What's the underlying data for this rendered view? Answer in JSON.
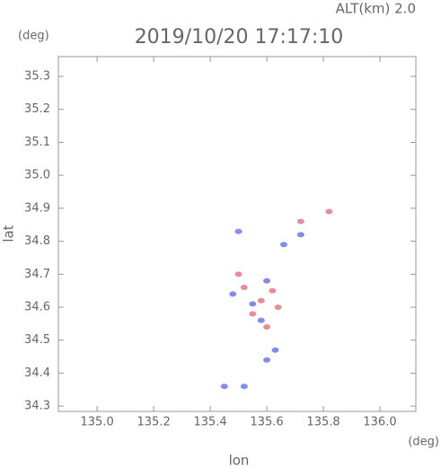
{
  "chart_data": {
    "type": "scatter",
    "header_label": "ALT(km) 2.0",
    "title": "2019/10/20 17:17:10",
    "y_unit": "(deg)",
    "x_unit": "(deg)",
    "x_label": "lon",
    "y_label": "lat",
    "xlim": [
      134.863,
      136.127
    ],
    "ylim": [
      34.284,
      35.36
    ],
    "xticks": [
      {
        "value": 135.0,
        "label": "135.0"
      },
      135.2,
      135.4,
      135.6,
      135.8,
      {
        "value": 136.0,
        "label": "136.0"
      }
    ],
    "yticks": [
      34.3,
      34.4,
      34.5,
      34.6,
      34.7,
      34.8,
      34.9,
      {
        "value": 35.0,
        "label": "35.0"
      },
      35.1,
      35.2,
      35.3
    ],
    "series": [
      {
        "color": "#e06878",
        "x": [
          135.5,
          135.62,
          135.58,
          135.6,
          135.72,
          135.82,
          135.55,
          135.64,
          135.52
        ],
        "values": [
          34.7,
          34.65,
          34.62,
          34.54,
          34.86,
          34.89,
          34.58,
          34.6,
          34.66
        ]
      },
      {
        "color": "#5a66e0",
        "x": [
          135.66,
          135.63,
          135.6,
          135.5,
          135.72,
          135.55,
          135.45,
          135.52,
          135.6,
          135.48,
          135.58
        ],
        "values": [
          34.79,
          34.47,
          34.44,
          34.83,
          34.82,
          34.61,
          34.36,
          34.36,
          34.68,
          34.64,
          34.56
        ]
      }
    ]
  }
}
